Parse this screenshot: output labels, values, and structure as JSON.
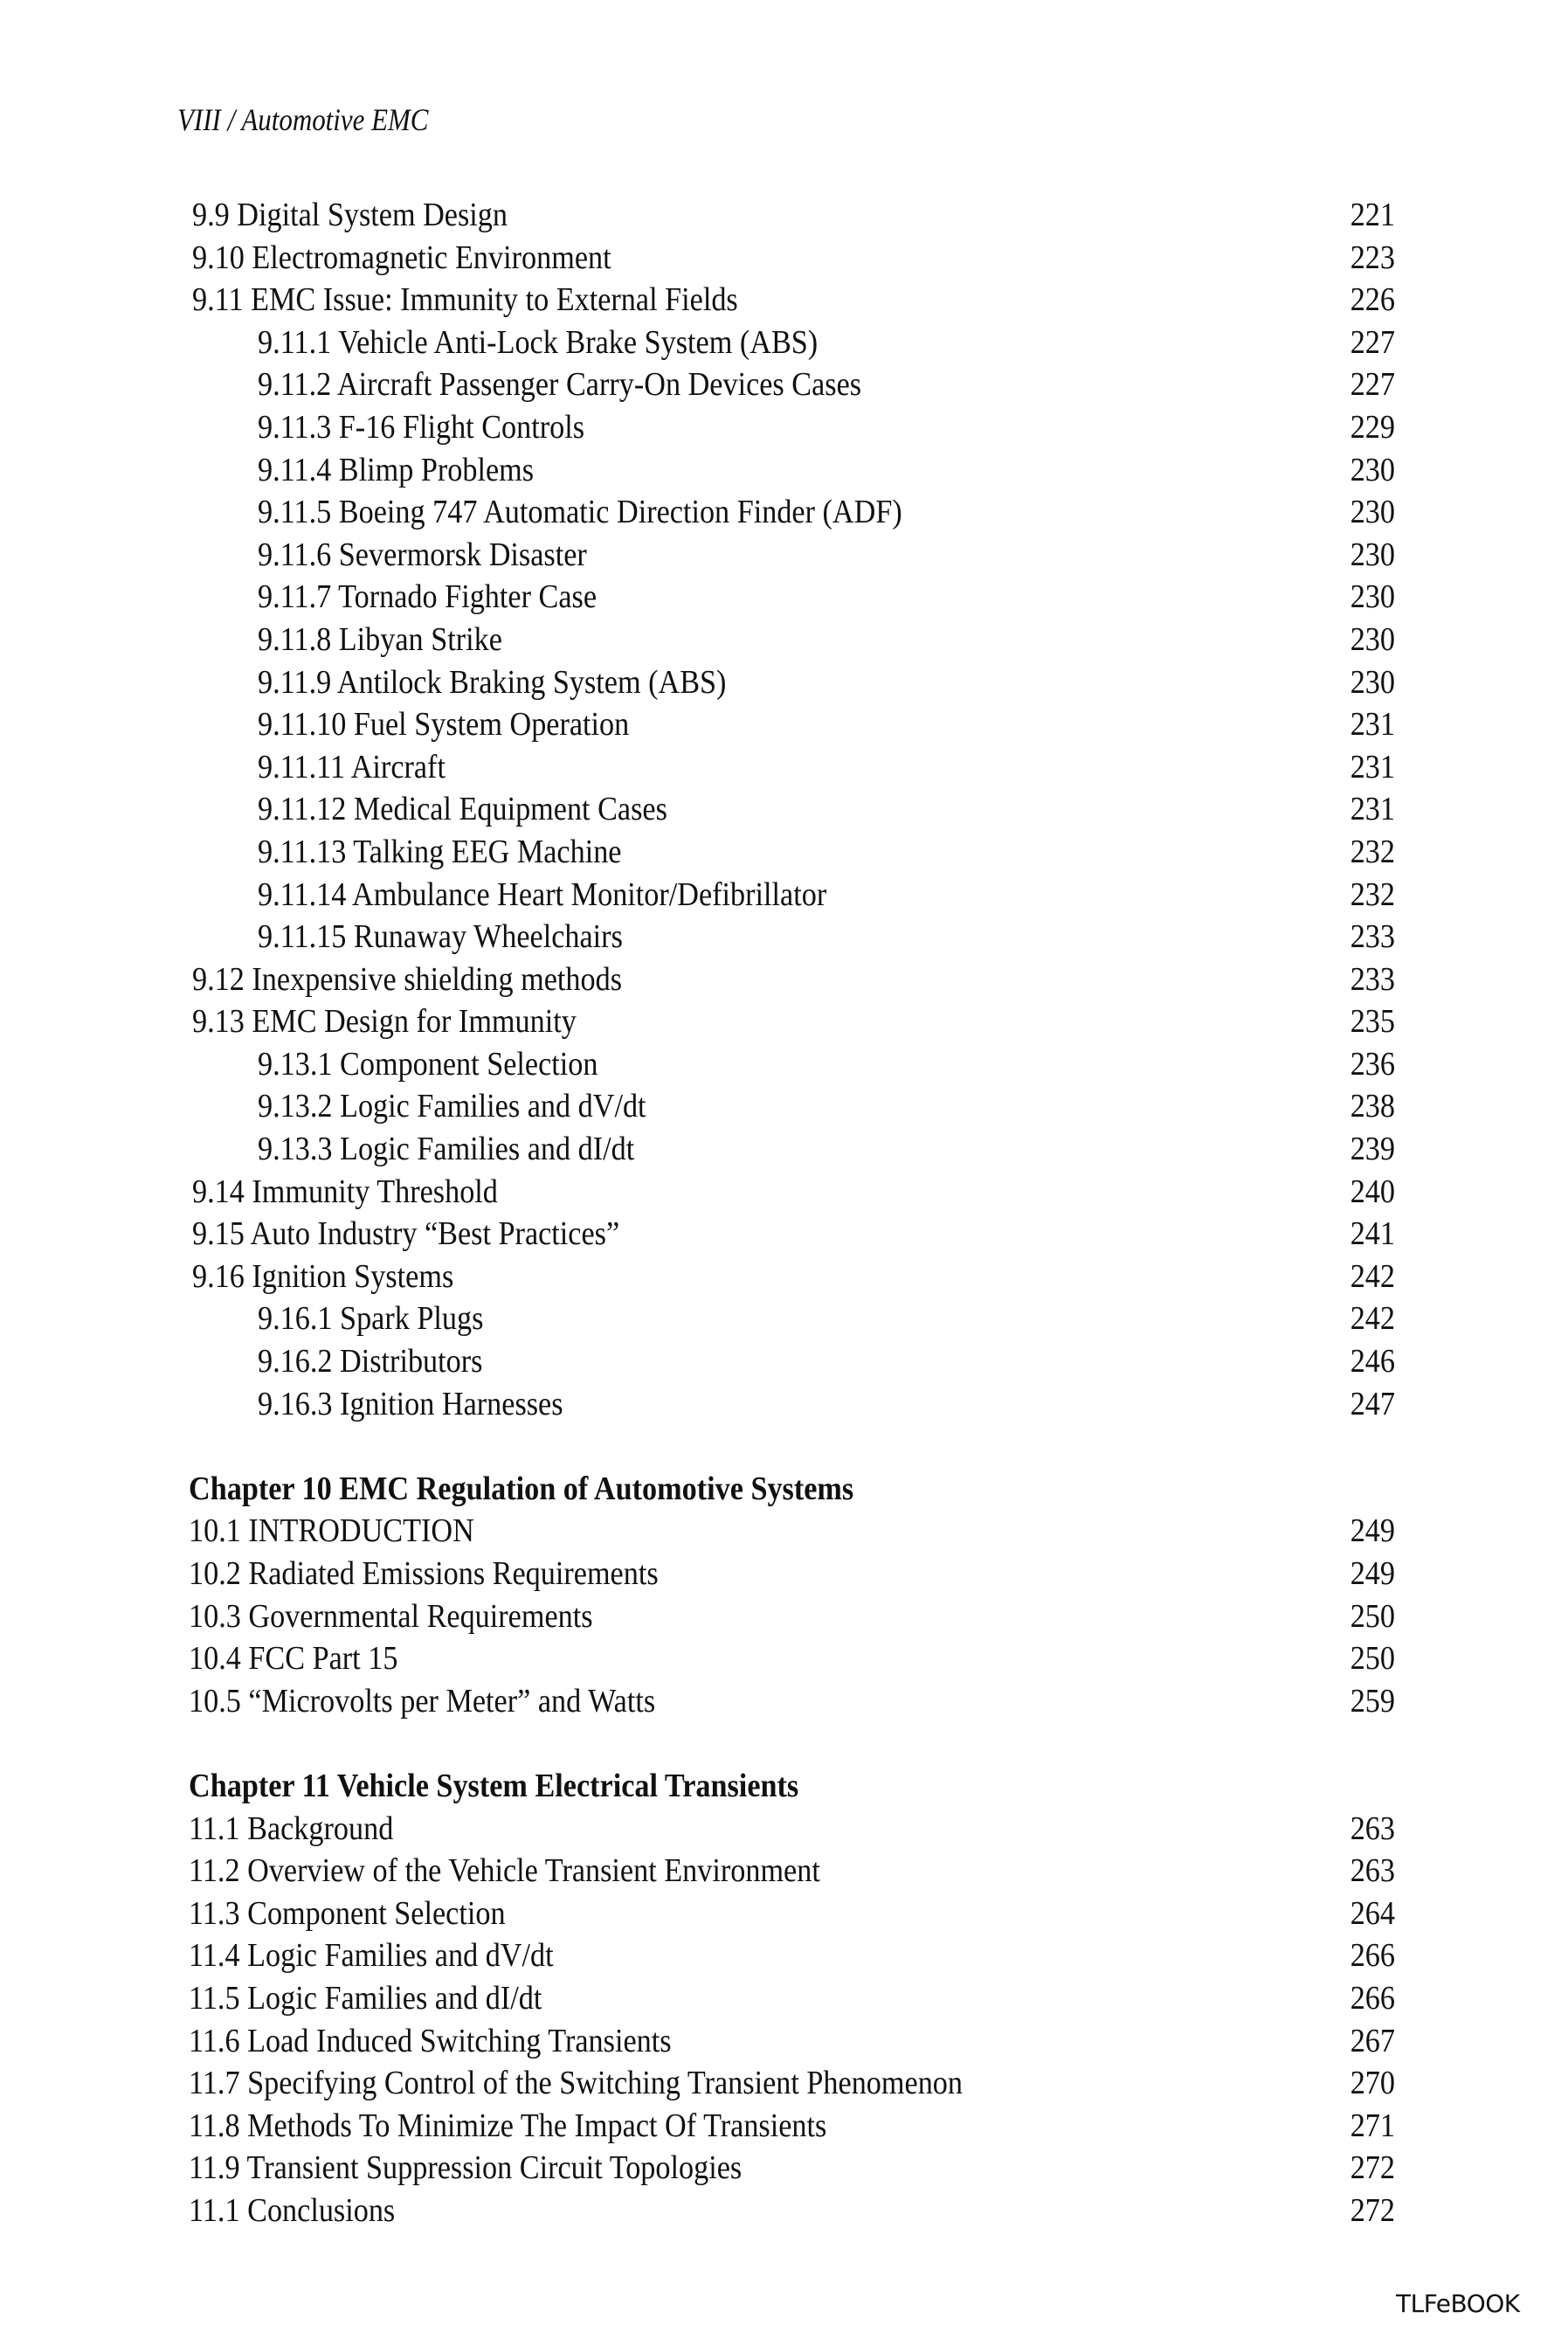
{
  "header": "VIII / Automotive EMC",
  "sections": [
    {
      "entries": [
        {
          "title": "9.9 Digital System Design",
          "page": "221",
          "level": 1
        },
        {
          "title": "9.10 Electromagnetic Environment",
          "page": "223",
          "level": 1
        },
        {
          "title": "9.11 EMC Issue: Immunity to External Fields",
          "page": "226",
          "level": 1
        },
        {
          "title": "9.11.1 Vehicle Anti-Lock Brake System (ABS)",
          "page": "227",
          "level": 2
        },
        {
          "title": "9.11.2 Aircraft Passenger Carry-On Devices Cases",
          "page": "227",
          "level": 2
        },
        {
          "title": "9.11.3 F-16 Flight Controls",
          "page": "229",
          "level": 2
        },
        {
          "title": "9.11.4 Blimp Problems",
          "page": "230",
          "level": 2
        },
        {
          "title": "9.11.5 Boeing 747 Automatic Direction Finder (ADF)",
          "page": "230",
          "level": 2
        },
        {
          "title": "9.11.6 Severmorsk Disaster",
          "page": "230",
          "level": 2
        },
        {
          "title": "9.11.7 Tornado Fighter Case",
          "page": "230",
          "level": 2
        },
        {
          "title": "9.11.8 Libyan Strike",
          "page": "230",
          "level": 2
        },
        {
          "title": "9.11.9 Antilock Braking System (ABS)",
          "page": "230",
          "level": 2
        },
        {
          "title": "9.11.10 Fuel System Operation",
          "page": "231",
          "level": 2
        },
        {
          "title": "9.11.11 Aircraft",
          "page": "231",
          "level": 2
        },
        {
          "title": "9.11.12 Medical Equipment Cases",
          "page": "231",
          "level": 2
        },
        {
          "title": "9.11.13 Talking EEG Machine",
          "page": "232",
          "level": 2
        },
        {
          "title": "9.11.14 Ambulance Heart Monitor/Defibrillator",
          "page": "232",
          "level": 2
        },
        {
          "title": "9.11.15 Runaway Wheelchairs",
          "page": "233",
          "level": 2
        },
        {
          "title": "9.12 Inexpensive shielding methods",
          "page": "233",
          "level": 1
        },
        {
          "title": "9.13 EMC Design for Immunity",
          "page": "235",
          "level": 1
        },
        {
          "title": "9.13.1 Component Selection",
          "page": "236",
          "level": 2
        },
        {
          "title": "9.13.2 Logic Families and dV/dt",
          "page": "238",
          "level": 2
        },
        {
          "title": "9.13.3 Logic Families and dI/dt",
          "page": "239",
          "level": 2
        },
        {
          "title": "9.14 Immunity Threshold",
          "page": "240",
          "level": 1
        },
        {
          "title": "9.15 Auto Industry “Best Practices”",
          "page": "241",
          "level": 1
        },
        {
          "title": "9.16 Ignition Systems",
          "page": "242",
          "level": 1
        },
        {
          "title": "9.16.1 Spark Plugs",
          "page": "242",
          "level": 2
        },
        {
          "title": "9.16.2 Distributors",
          "page": "246",
          "level": 2
        },
        {
          "title": "9.16.3 Ignition Harnesses",
          "page": "247",
          "level": 2
        }
      ]
    },
    {
      "chapter": "Chapter 10 EMC Regulation of Automotive Systems",
      "entries": [
        {
          "title": "10.1  INTRODUCTION",
          "page": "249",
          "level": 1
        },
        {
          "title": "10.2  Radiated Emissions Requirements",
          "page": "249",
          "level": 1
        },
        {
          "title": "10.3  Governmental Requirements",
          "page": "250",
          "level": 1
        },
        {
          "title": "10.4  FCC Part 15",
          "page": "250",
          "level": 1
        },
        {
          "title": "10.5  “Microvolts per Meter” and Watts",
          "page": "259",
          "level": 1
        }
      ]
    },
    {
      "chapter": "Chapter 11 Vehicle System Electrical Transients",
      "entries": [
        {
          "title": "11.1 Background",
          "page": "263",
          "level": 1
        },
        {
          "title": "11.2 Overview of the Vehicle Transient Environment",
          "page": "263",
          "level": 1
        },
        {
          "title": "11.3 Component Selection",
          "page": "264",
          "level": 1
        },
        {
          "title": "11.4 Logic Families and dV/dt",
          "page": "266",
          "level": 1
        },
        {
          "title": "11.5 Logic Families and dI/dt",
          "page": "266",
          "level": 1
        },
        {
          "title": "11.6 Load Induced Switching Transients",
          "page": "267",
          "level": 1
        },
        {
          "title": "11.7 Specifying Control of the Switching Transient Phenomenon",
          "page": "270",
          "level": 1
        },
        {
          "title": "11.8 Methods To Minimize The Impact Of Transients",
          "page": "271",
          "level": 1
        },
        {
          "title": "11.9 Transient Suppression Circuit Topologies",
          "page": "272",
          "level": 1
        },
        {
          "title": "11.1 Conclusions",
          "page": "272",
          "level": 1
        }
      ]
    }
  ],
  "footer": "TLFeBOOK"
}
